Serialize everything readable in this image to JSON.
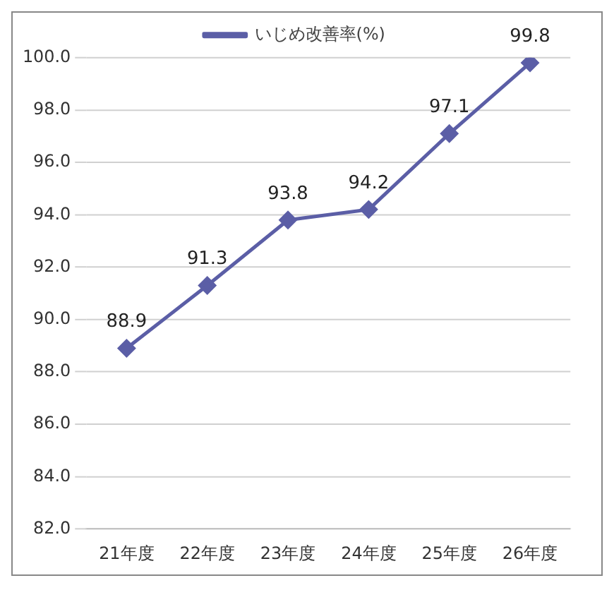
{
  "chart_data": {
    "type": "line",
    "categories": [
      "21年度",
      "22年度",
      "23年度",
      "24年度",
      "25年度",
      "26年度"
    ],
    "series": [
      {
        "name": "いじめ改善率(%)",
        "color": "#5b5ea6",
        "values": [
          88.9,
          91.3,
          93.8,
          94.2,
          97.1,
          99.8
        ]
      }
    ],
    "ylim": [
      82,
      100
    ],
    "yticks": [
      {
        "value": 82,
        "label": "82.0"
      },
      {
        "value": 84,
        "label": "84.0"
      },
      {
        "value": 86,
        "label": "86.0"
      },
      {
        "value": 88,
        "label": "88.0"
      },
      {
        "value": 90,
        "label": "90.0"
      },
      {
        "value": 92,
        "label": "92.0"
      },
      {
        "value": 94,
        "label": "94.0"
      },
      {
        "value": 96,
        "label": "96.0"
      },
      {
        "value": 98,
        "label": "98.0"
      },
      {
        "value": 100,
        "label": "100.0"
      }
    ],
    "grid": "y",
    "legend": "top",
    "marker": "diamond",
    "line_style": "solid",
    "data_labels": true
  }
}
